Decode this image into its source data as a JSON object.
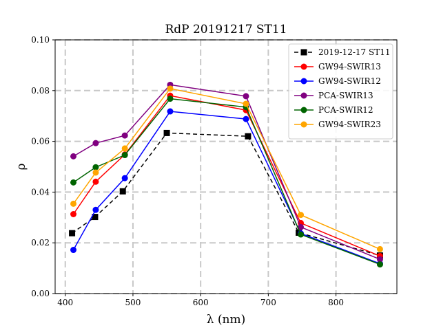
{
  "chart_data": {
    "type": "line",
    "title": "RdP 20191217 ST11",
    "xlabel": "λ (nm)",
    "ylabel": "ρ",
    "xlim": [
      385,
      890
    ],
    "ylim": [
      0.0,
      0.1
    ],
    "xticks": [
      400,
      500,
      600,
      700,
      800
    ],
    "yticks": [
      0.0,
      0.02,
      0.04,
      0.06,
      0.08,
      0.1
    ],
    "xtick_labels": [
      "400",
      "500",
      "600",
      "700",
      "800"
    ],
    "ytick_labels": [
      "0.00",
      "0.02",
      "0.04",
      "0.06",
      "0.08",
      "0.10"
    ],
    "grid": true,
    "legend_position": "top-right",
    "series": [
      {
        "name": "2019-12-17 ST11",
        "color": "#000000",
        "marker": "square",
        "linestyle": "dashed",
        "x": [
          410,
          444,
          485,
          550,
          670,
          745,
          865
        ],
        "y": [
          0.0238,
          0.0302,
          0.0403,
          0.0633,
          0.062,
          0.024,
          0.015
        ]
      },
      {
        "name": "GW94-SWIR13",
        "color": "#ff0000",
        "marker": "circle",
        "linestyle": "solid",
        "x": [
          412,
          445,
          488,
          555,
          667,
          748,
          865
        ],
        "y": [
          0.0313,
          0.0441,
          0.0548,
          0.078,
          0.0723,
          0.0278,
          0.0148
        ]
      },
      {
        "name": "GW94-SWIR12",
        "color": "#0000ff",
        "marker": "circle",
        "linestyle": "solid",
        "x": [
          412,
          445,
          488,
          555,
          667,
          748,
          865
        ],
        "y": [
          0.0172,
          0.033,
          0.0455,
          0.0718,
          0.0688,
          0.0237,
          0.0118
        ]
      },
      {
        "name": "PCA-SWIR13",
        "color": "#800080",
        "marker": "circle",
        "linestyle": "solid",
        "x": [
          412,
          445,
          488,
          555,
          667,
          748,
          865
        ],
        "y": [
          0.0541,
          0.0593,
          0.0623,
          0.0823,
          0.0778,
          0.0262,
          0.0135
        ]
      },
      {
        "name": "PCA-SWIR12",
        "color": "#006400",
        "marker": "circle",
        "linestyle": "solid",
        "x": [
          412,
          445,
          488,
          555,
          667,
          748,
          865
        ],
        "y": [
          0.0438,
          0.0498,
          0.0546,
          0.0768,
          0.0735,
          0.0233,
          0.0115
        ]
      },
      {
        "name": "GW94-SWIR23",
        "color": "#ffa500",
        "marker": "circle",
        "linestyle": "solid",
        "x": [
          412,
          445,
          488,
          555,
          667,
          748,
          865
        ],
        "y": [
          0.0354,
          0.0477,
          0.0572,
          0.0808,
          0.0748,
          0.031,
          0.0175
        ]
      }
    ]
  }
}
